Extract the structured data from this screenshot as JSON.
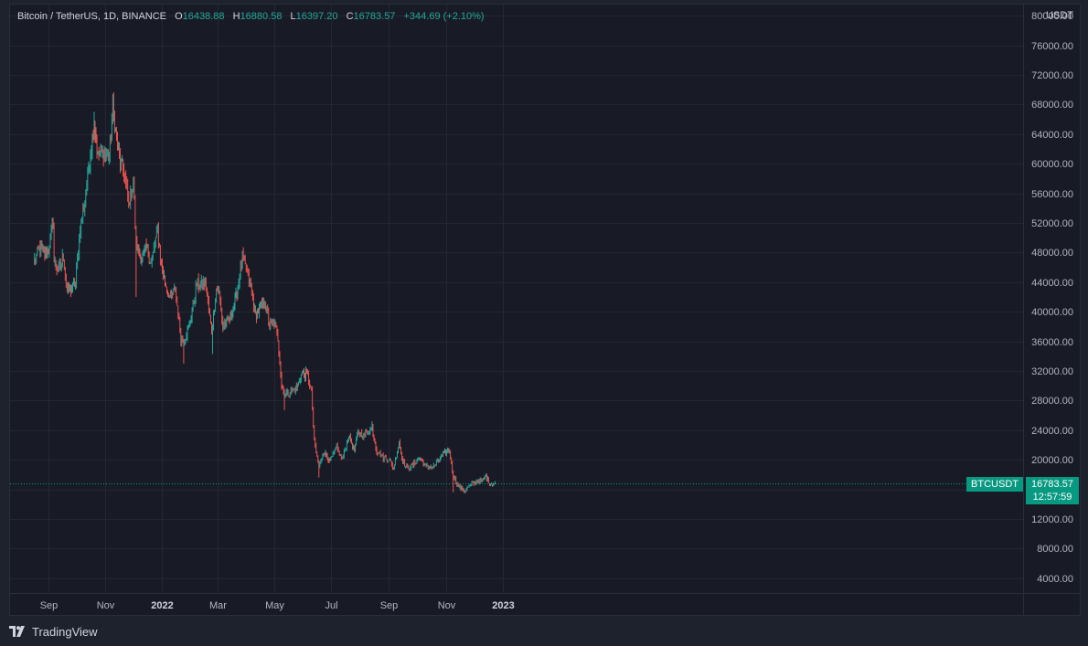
{
  "legend": {
    "symbol": "Bitcoin / TetherUS, 1D, BINANCE",
    "o_label": "O",
    "o_value": "16438.88",
    "h_label": "H",
    "h_value": "16880.58",
    "l_label": "L",
    "l_value": "16397.20",
    "c_label": "C",
    "c_value": "16783.57",
    "change": "+344.69 (+2.10%)"
  },
  "currency": "USDT",
  "symbol_tag": "BTCUSDT",
  "last_price": "16783.57",
  "countdown": "12:57:59",
  "footer": {
    "brand": "TradingView"
  },
  "colors": {
    "up": "#26a69a",
    "down": "#ef5350",
    "background": "#181b26",
    "grid": "#242733",
    "price_line": "#089981"
  },
  "chart_data": {
    "type": "candlestick",
    "title": "Bitcoin / TetherUS, 1D, BINANCE",
    "ylim": [
      2000,
      81500
    ],
    "y_ticks": [
      "4000.00",
      "8000.00",
      "12000.00",
      "16000.00",
      "20000.00",
      "24000.00",
      "28000.00",
      "32000.00",
      "36000.00",
      "40000.00",
      "44000.00",
      "48000.00",
      "52000.00",
      "56000.00",
      "60000.00",
      "64000.00",
      "68000.00",
      "72000.00",
      "76000.00",
      "80000.00"
    ],
    "x_ticks": [
      {
        "label": "Sep",
        "date": "2021-09-01",
        "year": false
      },
      {
        "label": "Nov",
        "date": "2021-11-01",
        "year": false
      },
      {
        "label": "2022",
        "date": "2022-01-01",
        "year": true
      },
      {
        "label": "Mar",
        "date": "2022-03-01",
        "year": false
      },
      {
        "label": "May",
        "date": "2022-05-01",
        "year": false
      },
      {
        "label": "Jul",
        "date": "2022-07-01",
        "year": false
      },
      {
        "label": "Sep",
        "date": "2022-09-01",
        "year": false
      },
      {
        "label": "Nov",
        "date": "2022-11-01",
        "year": false
      },
      {
        "label": "2023",
        "date": "2023-01-01",
        "year": true
      }
    ],
    "grid": true,
    "series": [
      {
        "name": "BTCUSDT",
        "close_path": [
          [
            "2021-08-17",
            47000
          ],
          [
            "2021-08-22",
            48500
          ],
          [
            "2021-08-27",
            47800
          ],
          [
            "2021-09-01",
            48500
          ],
          [
            "2021-09-06",
            52000
          ],
          [
            "2021-09-07",
            46800
          ],
          [
            "2021-09-12",
            45500
          ],
          [
            "2021-09-17",
            47500
          ],
          [
            "2021-09-21",
            42800
          ],
          [
            "2021-09-26",
            43200
          ],
          [
            "2021-09-30",
            43800
          ],
          [
            "2021-10-05",
            51500
          ],
          [
            "2021-10-10",
            55000
          ],
          [
            "2021-10-15",
            60500
          ],
          [
            "2021-10-20",
            65500
          ],
          [
            "2021-10-24",
            61000
          ],
          [
            "2021-10-28",
            61500
          ],
          [
            "2021-11-01",
            61300
          ],
          [
            "2021-11-05",
            61200
          ],
          [
            "2021-11-09",
            67500
          ],
          [
            "2021-11-12",
            64500
          ],
          [
            "2021-11-17",
            60200
          ],
          [
            "2021-11-21",
            59000
          ],
          [
            "2021-11-26",
            54500
          ],
          [
            "2021-12-01",
            57500
          ],
          [
            "2021-12-04",
            49000
          ],
          [
            "2021-12-10",
            47200
          ],
          [
            "2021-12-15",
            48500
          ],
          [
            "2021-12-20",
            46500
          ],
          [
            "2021-12-27",
            51000
          ],
          [
            "2021-12-31",
            46300
          ],
          [
            "2022-01-05",
            43500
          ],
          [
            "2022-01-10",
            41800
          ],
          [
            "2022-01-15",
            43000
          ],
          [
            "2022-01-21",
            36500
          ],
          [
            "2022-01-24",
            36200
          ],
          [
            "2022-01-30",
            38000
          ],
          [
            "2022-02-07",
            43800
          ],
          [
            "2022-02-10",
            43500
          ],
          [
            "2022-02-16",
            44000
          ],
          [
            "2022-02-23",
            37300
          ],
          [
            "2022-02-28",
            43100
          ],
          [
            "2022-03-03",
            42500
          ],
          [
            "2022-03-07",
            38000
          ],
          [
            "2022-03-15",
            39300
          ],
          [
            "2022-03-22",
            42400
          ],
          [
            "2022-03-28",
            47400
          ],
          [
            "2022-04-01",
            45600
          ],
          [
            "2022-04-06",
            43200
          ],
          [
            "2022-04-11",
            39500
          ],
          [
            "2022-04-18",
            40800
          ],
          [
            "2022-04-21",
            41500
          ],
          [
            "2022-04-26",
            38100
          ],
          [
            "2022-05-01",
            38500
          ],
          [
            "2022-05-05",
            36500
          ],
          [
            "2022-05-09",
            30100
          ],
          [
            "2022-05-12",
            28900
          ],
          [
            "2022-05-18",
            29000
          ],
          [
            "2022-05-25",
            29700
          ],
          [
            "2022-05-31",
            31800
          ],
          [
            "2022-06-06",
            31400
          ],
          [
            "2022-06-10",
            29100
          ],
          [
            "2022-06-13",
            22500
          ],
          [
            "2022-06-18",
            19000
          ],
          [
            "2022-06-23",
            21100
          ],
          [
            "2022-06-30",
            19900
          ],
          [
            "2022-07-07",
            21600
          ],
          [
            "2022-07-13",
            20000
          ],
          [
            "2022-07-20",
            23300
          ],
          [
            "2022-07-26",
            21200
          ],
          [
            "2022-07-30",
            23800
          ],
          [
            "2022-08-05",
            23300
          ],
          [
            "2022-08-14",
            24300
          ],
          [
            "2022-08-19",
            21200
          ],
          [
            "2022-08-26",
            20300
          ],
          [
            "2022-09-01",
            20100
          ],
          [
            "2022-09-06",
            18800
          ],
          [
            "2022-09-12",
            22400
          ],
          [
            "2022-09-16",
            19800
          ],
          [
            "2022-09-20",
            18900
          ],
          [
            "2022-09-26",
            19200
          ],
          [
            "2022-10-04",
            20300
          ],
          [
            "2022-10-11",
            19000
          ],
          [
            "2022-10-19",
            19100
          ],
          [
            "2022-10-25",
            20100
          ],
          [
            "2022-10-29",
            20800
          ],
          [
            "2022-11-05",
            21300
          ],
          [
            "2022-11-08",
            18500
          ],
          [
            "2022-11-10",
            17600
          ],
          [
            "2022-11-14",
            16600
          ],
          [
            "2022-11-21",
            15800
          ],
          [
            "2022-11-27",
            16500
          ],
          [
            "2022-12-05",
            17200
          ],
          [
            "2022-12-10",
            17100
          ],
          [
            "2022-12-14",
            17800
          ],
          [
            "2022-12-18",
            16800
          ],
          [
            "2022-12-24",
            16800
          ]
        ],
        "low_outliers": [
          [
            "2021-12-04",
            42000
          ],
          [
            "2022-01-24",
            33000
          ],
          [
            "2022-02-24",
            34300
          ],
          [
            "2022-05-12",
            26700
          ],
          [
            "2022-06-18",
            17600
          ],
          [
            "2022-11-09",
            15600
          ],
          [
            "2022-11-21",
            15500
          ]
        ],
        "high_outliers": [
          [
            "2021-10-20",
            67000
          ],
          [
            "2021-11-10",
            69000
          ],
          [
            "2022-03-28",
            48200
          ],
          [
            "2022-08-14",
            25200
          ],
          [
            "2022-09-13",
            22800
          ],
          [
            "2022-11-05",
            21450
          ]
        ]
      }
    ]
  }
}
